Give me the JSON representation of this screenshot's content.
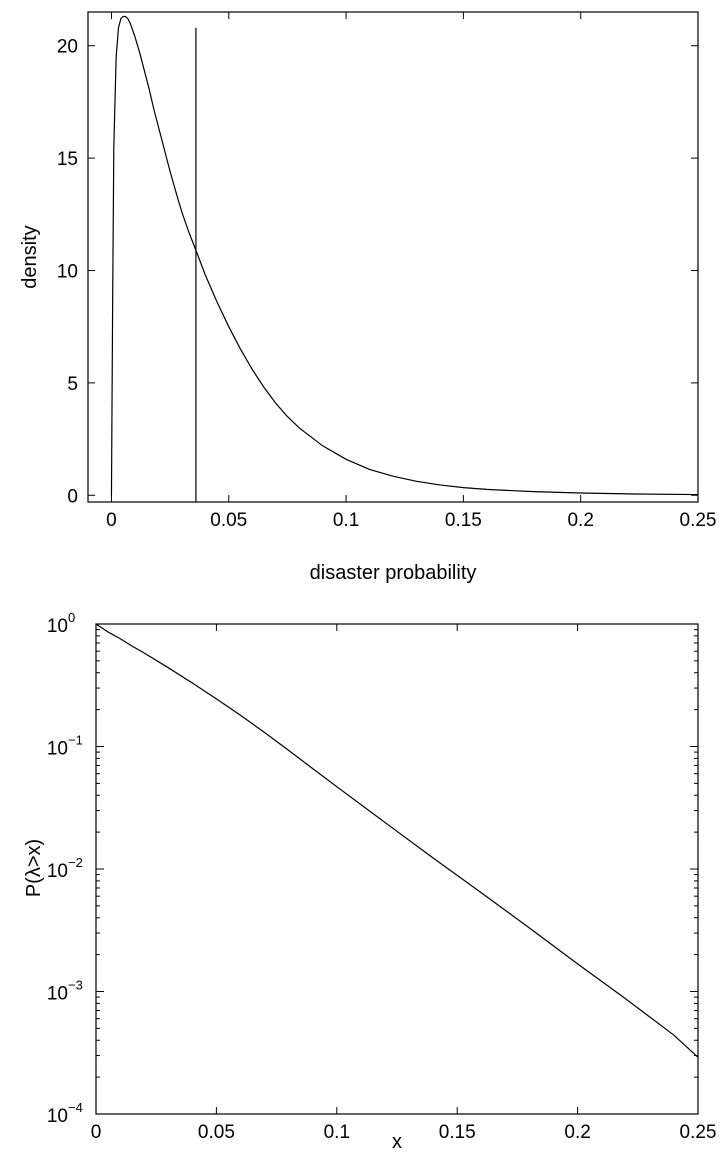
{
  "chart_data": [
    {
      "type": "line",
      "title": "",
      "xlabel": "disaster probability",
      "ylabel": "density",
      "xlim": [
        -0.01,
        0.25
      ],
      "ylim": [
        -0.3,
        21.5
      ],
      "grid": false,
      "box": true,
      "xticks": [
        0,
        0.05,
        0.1,
        0.15,
        0.2,
        0.25
      ],
      "xtick_labels": [
        "0",
        "0.05",
        "0.1",
        "0.15",
        "0.2",
        "0.25"
      ],
      "yticks": [
        0,
        5,
        10,
        15,
        20
      ],
      "ytick_labels": [
        "0",
        "5",
        "10",
        "15",
        "20"
      ],
      "series": [
        {
          "x": [
            0,
            0.0005,
            0.001,
            0.002,
            0.003,
            0.004,
            0.005,
            0.006,
            0.007,
            0.008,
            0.009,
            0.01,
            0.012,
            0.014,
            0.016,
            0.018,
            0.02,
            0.022,
            0.025,
            0.028,
            0.03,
            0.033,
            0.036,
            0.04,
            0.045,
            0.05,
            0.055,
            0.06,
            0.065,
            0.07,
            0.075,
            0.08,
            0.09,
            0.1,
            0.11,
            0.12,
            0.13,
            0.14,
            0.15,
            0.16,
            0.18,
            0.2,
            0.22,
            0.25
          ],
          "y": [
            0,
            8.5,
            15.5,
            19.5,
            20.8,
            21.2,
            21.3,
            21.3,
            21.2,
            21.0,
            20.7,
            20.4,
            19.7,
            18.9,
            18.1,
            17.2,
            16.4,
            15.6,
            14.4,
            13.3,
            12.6,
            11.7,
            10.9,
            9.8,
            8.6,
            7.5,
            6.5,
            5.6,
            4.8,
            4.1,
            3.5,
            3.0,
            2.2,
            1.6,
            1.15,
            0.85,
            0.62,
            0.46,
            0.34,
            0.26,
            0.16,
            0.1,
            0.06,
            0.03
          ]
        }
      ],
      "vline": {
        "x": 0.036,
        "y_top": 20.8
      }
    },
    {
      "type": "line",
      "title": "",
      "xlabel": "x",
      "ylabel": "P(λ>x)",
      "xlim": [
        0,
        0.25
      ],
      "ylim": [
        0.0001,
        1
      ],
      "yscale": "log",
      "grid": false,
      "box": true,
      "xticks": [
        0,
        0.05,
        0.1,
        0.15,
        0.2,
        0.25
      ],
      "xtick_labels": [
        "0",
        "0.05",
        "0.1",
        "0.15",
        "0.2",
        "0.25"
      ],
      "yticks": [
        1,
        0.1,
        0.01,
        0.001,
        0.0001
      ],
      "ytick_base": "10",
      "ytick_exponents": [
        "0",
        "−1",
        "−2",
        "−3",
        "−4"
      ],
      "series": [
        {
          "x": [
            0,
            0.005,
            0.01,
            0.015,
            0.02,
            0.03,
            0.04,
            0.05,
            0.06,
            0.07,
            0.08,
            0.09,
            0.1,
            0.12,
            0.14,
            0.16,
            0.18,
            0.2,
            0.22,
            0.24,
            0.25
          ],
          "y": [
            1.0,
            0.86,
            0.76,
            0.66,
            0.58,
            0.44,
            0.33,
            0.245,
            0.18,
            0.13,
            0.093,
            0.066,
            0.047,
            0.024,
            0.0123,
            0.0064,
            0.0033,
            0.00168,
            0.00087,
            0.00044,
            0.00029
          ]
        }
      ]
    }
  ]
}
